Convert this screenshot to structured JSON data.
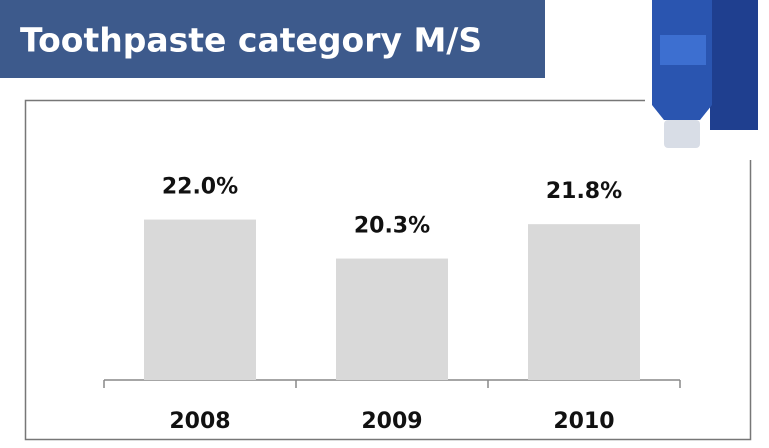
{
  "chart_data": {
    "type": "bar",
    "title": "Toothpaste category M/S",
    "categories": [
      "2008",
      "2009",
      "2010"
    ],
    "values": [
      22.0,
      20.3,
      21.8
    ],
    "value_labels": [
      "22.0%",
      "20.3%",
      "21.8%"
    ],
    "color": "#d9d9d9",
    "ylim": [
      15,
      27
    ]
  }
}
